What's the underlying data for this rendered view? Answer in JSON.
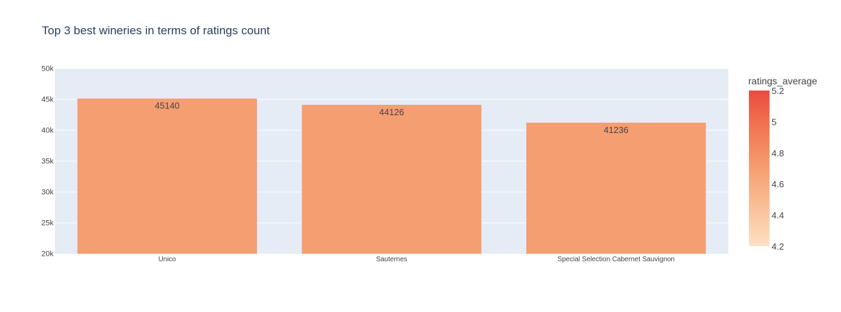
{
  "chart_data": {
    "type": "bar",
    "title": "Top 3 best wineries in terms of ratings count",
    "xlabel": "",
    "ylabel": "",
    "categories": [
      "Unico",
      "Sauternes",
      "Special Selection Cabernet Sauvignon"
    ],
    "values": [
      45140,
      44126,
      41236
    ],
    "data_labels": [
      "45140",
      "44126",
      "41236"
    ],
    "ylim": [
      20000,
      50000
    ],
    "y_ticks": [
      20000,
      25000,
      30000,
      35000,
      40000,
      45000,
      50000
    ],
    "y_tick_labels": [
      "20k",
      "25k",
      "30k",
      "35k",
      "40k",
      "45k",
      "50k"
    ],
    "grid": true,
    "legend": "none",
    "colorbar": {
      "title": "ratings_average",
      "range": [
        4.2,
        5.2
      ],
      "ticks": [
        4.2,
        4.4,
        4.6,
        4.8,
        5,
        5.2
      ],
      "tick_labels": [
        "4.2",
        "4.4",
        "4.6",
        "4.8",
        "5",
        "5.2"
      ],
      "placement": "right"
    },
    "colors": {
      "bar": "#f49e72",
      "plot_background": "#e5ecf6",
      "gridline": "#ffffff",
      "text": "#444444",
      "title_text": "#2a3f5f",
      "colorscale": [
        "#fde0c5",
        "#facba6",
        "#f8b58b",
        "#f59e72",
        "#f2855d",
        "#ef6a4c",
        "#eb4a40"
      ]
    }
  }
}
